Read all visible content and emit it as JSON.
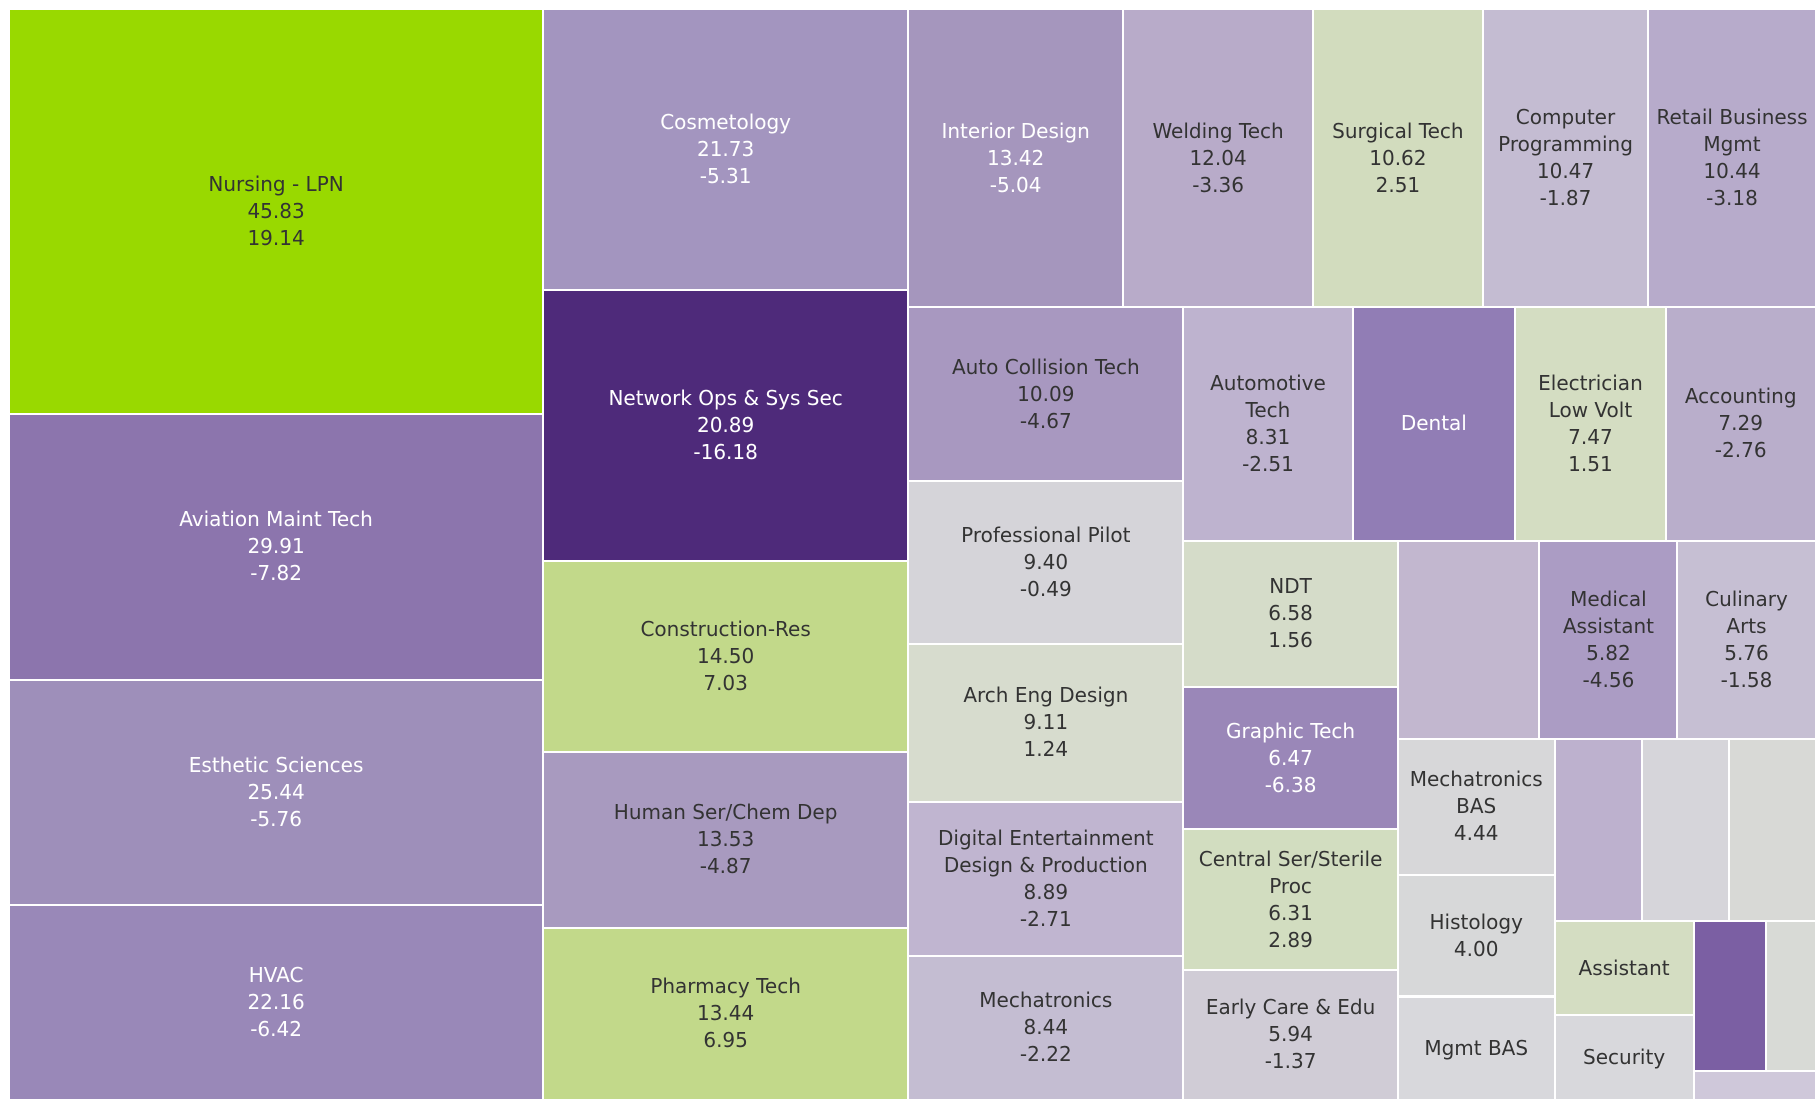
{
  "chart_data": {
    "type": "treemap",
    "items": [
      {
        "name": "Nursing - LPN",
        "value": 45.83,
        "value_label": "45.83",
        "change": 19.14,
        "change_label": "19.14",
        "color": "#99d900"
      },
      {
        "name": "Aviation Maint Tech",
        "value": 29.91,
        "value_label": "29.91",
        "change": -7.82,
        "change_label": "-7.82",
        "color": "#8c75ad"
      },
      {
        "name": "Esthetic Sciences",
        "value": 25.44,
        "value_label": "25.44",
        "change": -5.76,
        "change_label": "-5.76",
        "color": "#9e8fba"
      },
      {
        "name": "HVAC",
        "value": 22.16,
        "value_label": "22.16",
        "change": -6.42,
        "change_label": "-6.42",
        "color": "#9988b8"
      },
      {
        "name": "Cosmetology",
        "value": 21.73,
        "value_label": "21.73",
        "change": -5.31,
        "change_label": "-5.31",
        "color": "#a395bf"
      },
      {
        "name": "Network Ops & Sys Sec",
        "value": 20.89,
        "value_label": "20.89",
        "change": -16.18,
        "change_label": "-16.18",
        "color": "#4e2a7a"
      },
      {
        "name": "Construction-Res",
        "value": 14.5,
        "value_label": "14.50",
        "change": 7.03,
        "change_label": "7.03",
        "color": "#c2d98a"
      },
      {
        "name": "Human Ser/Chem Dep",
        "value": 13.53,
        "value_label": "13.53",
        "change": -4.87,
        "change_label": "-4.87",
        "color": "#a89abf"
      },
      {
        "name": "Pharmacy Tech",
        "value": 13.44,
        "value_label": "13.44",
        "change": 6.95,
        "change_label": "6.95",
        "color": "#c2d98a"
      },
      {
        "name": "Interior Design",
        "value": 13.42,
        "value_label": "13.42",
        "change": -5.04,
        "change_label": "-5.04",
        "color": "#a596bd"
      },
      {
        "name": "Welding Tech",
        "value": 12.04,
        "value_label": "12.04",
        "change": -3.36,
        "change_label": "-3.36",
        "color": "#b8abc9"
      },
      {
        "name": "Surgical Tech",
        "value": 10.62,
        "value_label": "10.62",
        "change": 2.51,
        "change_label": "2.51",
        "color": "#d2dcbe"
      },
      {
        "name": "Computer Programming",
        "value": 10.47,
        "value_label": "10.47",
        "change": -1.87,
        "change_label": "-1.87",
        "color": "#c4bcd2"
      },
      {
        "name": "Retail Business Mgmt",
        "value": 10.44,
        "value_label": "10.44",
        "change": -3.18,
        "change_label": "-3.18",
        "color": "#b7abcb"
      },
      {
        "name": "Auto Collision Tech",
        "value": 10.09,
        "value_label": "10.09",
        "change": -4.67,
        "change_label": "-4.67",
        "color": "#a898c0"
      },
      {
        "name": "Automotive Tech",
        "value": 8.31,
        "value_label": "8.31",
        "change": -2.51,
        "change_label": "-2.51",
        "color": "#beb3cf"
      },
      {
        "name": "Dental",
        "value": 8.0,
        "value_label": null,
        "change": null,
        "change_label": null,
        "color": "#917db5"
      },
      {
        "name": "Electrician Low Volt",
        "value": 7.47,
        "value_label": "7.47",
        "change": 1.51,
        "change_label": "1.51",
        "color": "#d4ddc2"
      },
      {
        "name": "Accounting",
        "value": 7.29,
        "value_label": "7.29",
        "change": -2.76,
        "change_label": "-2.76",
        "color": "#b9aecb"
      },
      {
        "name": "Professional Pilot",
        "value": 9.4,
        "value_label": "9.40",
        "change": -0.49,
        "change_label": "-0.49",
        "color": "#d5d4d9"
      },
      {
        "name": "Arch Eng Design",
        "value": 9.11,
        "value_label": "9.11",
        "change": 1.24,
        "change_label": "1.24",
        "color": "#d7dcce"
      },
      {
        "name": "Digital Entertainment Design & Production",
        "value": 8.89,
        "value_label": "8.89",
        "change": -2.71,
        "change_label": "-2.71",
        "color": "#c0b5d0"
      },
      {
        "name": "Mechatronics",
        "value": 8.44,
        "value_label": "8.44",
        "change": -2.22,
        "change_label": "-2.22",
        "color": "#c4bdd2"
      },
      {
        "name": "NDT",
        "value": 6.58,
        "value_label": "6.58",
        "change": 1.56,
        "change_label": "1.56",
        "color": "#d5dcc9"
      },
      {
        "name": "Graphic Tech",
        "value": 6.47,
        "value_label": "6.47",
        "change": -6.38,
        "change_label": "-6.38",
        "color": "#9a87b8"
      },
      {
        "name": "Central Ser/Sterile Proc",
        "value": 6.31,
        "value_label": "6.31",
        "change": 2.89,
        "change_label": "2.89",
        "color": "#d2ddc0"
      },
      {
        "name": "Early Care & Edu",
        "value": 5.94,
        "value_label": "5.94",
        "change": -1.37,
        "change_label": "-1.37",
        "color": "#d0ccd6"
      },
      {
        "name": null,
        "value": 5.96,
        "value_label": null,
        "change": null,
        "change_label": null,
        "color": "#c2b7cf"
      },
      {
        "name": "Medical Assistant",
        "value": 5.82,
        "value_label": "5.82",
        "change": -4.56,
        "change_label": "-4.56",
        "color": "#ab9cc4"
      },
      {
        "name": "Culinary Arts",
        "value": 5.76,
        "value_label": "5.76",
        "change": -1.58,
        "change_label": "-1.58",
        "color": "#c6bfd3"
      },
      {
        "name": "Mechatronics BAS",
        "value": 4.44,
        "value_label": "4.44",
        "change": null,
        "change_label": null,
        "color": "#d7d7d9"
      },
      {
        "name": "Histology",
        "value": 4.0,
        "value_label": "4.00",
        "change": null,
        "change_label": null,
        "color": "#d7d8d9"
      },
      {
        "name": "Mgmt BAS",
        "value": 3.43,
        "value_label": null,
        "change": null,
        "change_label": null,
        "color": "#d8d8dc"
      },
      {
        "name": null,
        "value": 3.36,
        "value_label": null,
        "change": null,
        "change_label": null,
        "color": "#bdb1ce"
      },
      {
        "name": null,
        "value": 3.36,
        "value_label": null,
        "change": null,
        "change_label": null,
        "color": "#d6d5da"
      },
      {
        "name": null,
        "value": 3.36,
        "value_label": null,
        "change": null,
        "change_label": null,
        "color": "#d8d9d6"
      },
      {
        "name": "Assistant",
        "value": 2.77,
        "value_label": null,
        "change": null,
        "change_label": null,
        "color": "#d4ddc2"
      },
      {
        "name": "Security",
        "value": 2.5,
        "value_label": null,
        "change": null,
        "change_label": null,
        "color": "#d8d8dc"
      },
      {
        "name": null,
        "value": 2.28,
        "value_label": null,
        "change": null,
        "change_label": null,
        "color": "#7b5fa3"
      },
      {
        "name": null,
        "value": 1.58,
        "value_label": null,
        "change": null,
        "change_label": null,
        "color": "#d8dad6"
      },
      {
        "name": null,
        "value": 0.75,
        "value_label": null,
        "change": null,
        "change_label": null,
        "color": "#cfc8da"
      }
    ]
  }
}
